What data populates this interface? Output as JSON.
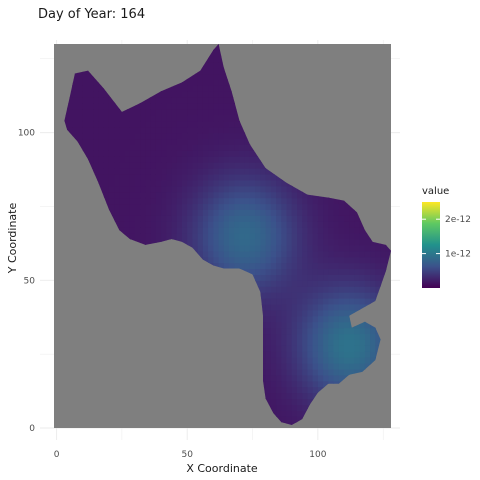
{
  "chart_data": {
    "type": "heatmap",
    "title": "Day of Year: 164",
    "xlabel": "X Coordinate",
    "ylabel": "Y Coordinate",
    "xlim": [
      0,
      128
    ],
    "ylim": [
      0,
      130
    ],
    "x_ticks": [
      0,
      50,
      100
    ],
    "y_ticks": [
      0,
      50,
      100
    ],
    "grid": true,
    "background_color": "#7f7f7f",
    "legend": {
      "title": "value",
      "position": "right",
      "scale": "viridis",
      "range": [
        0,
        2.5e-12
      ],
      "ticks": [
        {
          "value": 1e-12,
          "label": "1e-12"
        },
        {
          "value": 2e-12,
          "label": "2e-12"
        }
      ]
    },
    "region_outline": [
      [
        3,
        104
      ],
      [
        5,
        112
      ],
      [
        7,
        120
      ],
      [
        12,
        121
      ],
      [
        18,
        115
      ],
      [
        25,
        107
      ],
      [
        32,
        110
      ],
      [
        40,
        114
      ],
      [
        48,
        117
      ],
      [
        55,
        121
      ],
      [
        60,
        128
      ],
      [
        62,
        130
      ],
      [
        64,
        122
      ],
      [
        67,
        114
      ],
      [
        70,
        104
      ],
      [
        74,
        96
      ],
      [
        80,
        88
      ],
      [
        88,
        83
      ],
      [
        96,
        79
      ],
      [
        104,
        78
      ],
      [
        110,
        77
      ],
      [
        115,
        73
      ],
      [
        118,
        67
      ],
      [
        121,
        63
      ],
      [
        126,
        62
      ],
      [
        128,
        60
      ],
      [
        126,
        53
      ],
      [
        124,
        48
      ],
      [
        122,
        43
      ],
      [
        118,
        41
      ],
      [
        112,
        38
      ],
      [
        113,
        34
      ],
      [
        118,
        36
      ],
      [
        122,
        34
      ],
      [
        124,
        30
      ],
      [
        122,
        23
      ],
      [
        117,
        19
      ],
      [
        112,
        18
      ],
      [
        108,
        15
      ],
      [
        104,
        15
      ],
      [
        100,
        12
      ],
      [
        97,
        8
      ],
      [
        94,
        3
      ],
      [
        92,
        2
      ],
      [
        90,
        1
      ],
      [
        86,
        2
      ],
      [
        83,
        5
      ],
      [
        80,
        10
      ],
      [
        79,
        16
      ],
      [
        79,
        23
      ],
      [
        79,
        30
      ],
      [
        79,
        38
      ],
      [
        78,
        46
      ],
      [
        75,
        52
      ],
      [
        70,
        54
      ],
      [
        64,
        54
      ],
      [
        60,
        55
      ],
      [
        56,
        57
      ],
      [
        52,
        61
      ],
      [
        48,
        63
      ],
      [
        44,
        64
      ],
      [
        40,
        63
      ],
      [
        34,
        62
      ],
      [
        28,
        64
      ],
      [
        24,
        67
      ],
      [
        20,
        74
      ],
      [
        16,
        83
      ],
      [
        12,
        91
      ],
      [
        8,
        97
      ],
      [
        4,
        101
      ]
    ],
    "value_field_peaks": [
      {
        "x": 72,
        "y": 65,
        "value": 7e-13
      },
      {
        "x": 112,
        "y": 28,
        "value": 8e-13
      }
    ],
    "base_value": 1.5e-13
  }
}
